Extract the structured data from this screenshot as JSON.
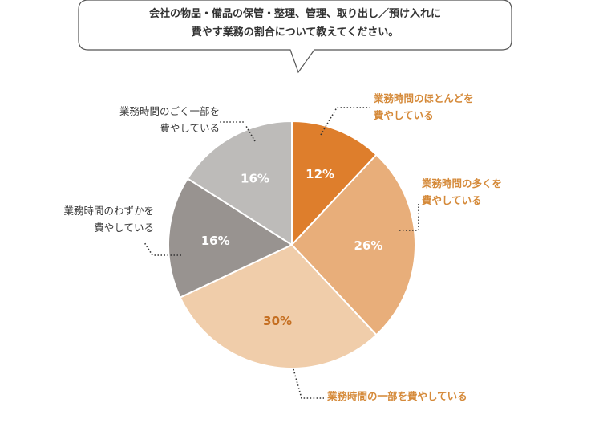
{
  "question": {
    "line1": "会社の物品・備品の保管・整理、管理、取り出し／預け入れに",
    "line2": "費やす業務の割合について教えてください。"
  },
  "chart_data": {
    "type": "pie",
    "title": "",
    "slices": [
      {
        "label_line1": "業務時間のほとんどを",
        "label_line2": "費やしている",
        "value": 12,
        "value_label": "12%",
        "color": "#de7e2c"
      },
      {
        "label_line1": "業務時間の多くを",
        "label_line2": "費やしている",
        "value": 26,
        "value_label": "26%",
        "color": "#e8ae7a"
      },
      {
        "label_line1": "業務時間の一部を費やしている",
        "label_line2": "",
        "value": 30,
        "value_label": "30%",
        "color": "#f0cdaa"
      },
      {
        "label_line1": "業務時間のわずかを",
        "label_line2": "費やしている",
        "value": 16,
        "value_label": "16%",
        "color": "#989390"
      },
      {
        "label_line1": "業務時間のごく一部を",
        "label_line2": "費やしている",
        "value": 16,
        "value_label": "16%",
        "color": "#bdbbb9"
      }
    ],
    "start": "12 o'clock",
    "direction": "clockwise",
    "legend": "none"
  }
}
